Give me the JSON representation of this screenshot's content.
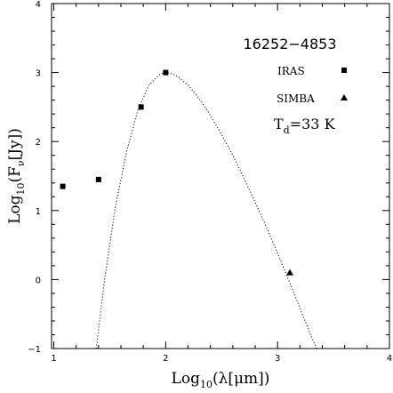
{
  "chart_data": {
    "type": "scatter",
    "title": "16252−4853",
    "xlabel": {
      "prefix": "Log",
      "sub": "10",
      "suffix": "(λ[μm])"
    },
    "ylabel": {
      "prefix": "Log",
      "sub": "10",
      "mid": "(F",
      "sub2": "ν",
      "suffix": "[Jy])"
    },
    "xlim": [
      0.98,
      4
    ],
    "ylim": [
      -1,
      4
    ],
    "xticks": [
      1,
      2,
      3,
      4
    ],
    "yticks": [
      -1,
      0,
      1,
      2,
      3,
      4
    ],
    "xtick_labels": [
      "1",
      "2",
      "3",
      "4"
    ],
    "ytick_labels": [
      "−1",
      "0",
      "1",
      "2",
      "3",
      "4"
    ],
    "series": [
      {
        "name": "IRAS",
        "marker": "square",
        "x": [
          1.08,
          1.4,
          1.78,
          2.0
        ],
        "y": [
          1.35,
          1.45,
          2.5,
          3.0
        ]
      },
      {
        "name": "SIMBA",
        "marker": "triangle",
        "x": [
          3.11
        ],
        "y": [
          0.1
        ]
      }
    ],
    "fit_curve": {
      "style": "dotted",
      "x": [
        1.38,
        1.45,
        1.55,
        1.65,
        1.75,
        1.85,
        1.95,
        2.0,
        2.05,
        2.1,
        2.2,
        2.3,
        2.4,
        2.5,
        2.6,
        2.7,
        2.8,
        2.9,
        3.0,
        3.1,
        3.2,
        3.3,
        3.35
      ],
      "y": [
        -1.0,
        -0.05,
        1.05,
        1.85,
        2.45,
        2.82,
        2.98,
        3.0,
        2.99,
        2.95,
        2.82,
        2.62,
        2.38,
        2.1,
        1.8,
        1.47,
        1.12,
        0.76,
        0.38,
        -0.01,
        -0.41,
        -0.82,
        -1.0
      ]
    },
    "annotations": [
      {
        "text": "T",
        "sub": "d",
        "rest": "=33  K"
      }
    ],
    "grid": false,
    "legend_position": "top-right"
  }
}
